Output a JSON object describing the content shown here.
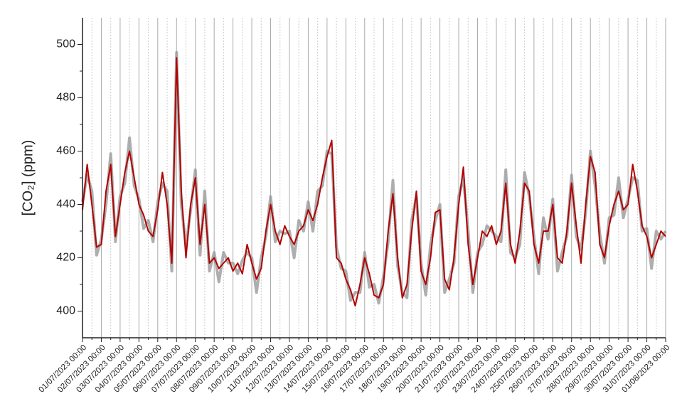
{
  "chart_data": {
    "type": "line",
    "ylabel": "[CO₂] (ppm)",
    "ylim": [
      390,
      510
    ],
    "yticks": [
      400,
      420,
      440,
      460,
      480,
      500
    ],
    "xlim": [
      0,
      31
    ],
    "xticks": [
      {
        "value": 0,
        "label": "01/07/2023 00:00"
      },
      {
        "value": 1,
        "label": "02/07/2023 00:00"
      },
      {
        "value": 2,
        "label": "03/07/2023 00:00"
      },
      {
        "value": 3,
        "label": "04/07/2023 00:00"
      },
      {
        "value": 4,
        "label": "05/07/2023 00:00"
      },
      {
        "value": 5,
        "label": "06/07/2023 00:00"
      },
      {
        "value": 6,
        "label": "07/07/2023 00:00"
      },
      {
        "value": 7,
        "label": "08/07/2023 00:00"
      },
      {
        "value": 8,
        "label": "09/07/2023 00:00"
      },
      {
        "value": 9,
        "label": "10/07/2023 00:00"
      },
      {
        "value": 10,
        "label": "11/07/2023 00:00"
      },
      {
        "value": 11,
        "label": "12/07/2023 00:00"
      },
      {
        "value": 12,
        "label": "13/07/2023 00:00"
      },
      {
        "value": 13,
        "label": "14/07/2023 00:00"
      },
      {
        "value": 14,
        "label": "15/07/2023 00:00"
      },
      {
        "value": 15,
        "label": "16/07/2023 00:00"
      },
      {
        "value": 16,
        "label": "17/07/2023 00:00"
      },
      {
        "value": 17,
        "label": "18/07/2023 00:00"
      },
      {
        "value": 18,
        "label": "19/07/2023 00:00"
      },
      {
        "value": 19,
        "label": "20/07/2023 00:00"
      },
      {
        "value": 20,
        "label": "21/07/2023 00:00"
      },
      {
        "value": 21,
        "label": "22/07/2023 00:00"
      },
      {
        "value": 22,
        "label": "23/07/2023 00:00"
      },
      {
        "value": 23,
        "label": "24/07/2023 00:00"
      },
      {
        "value": 24,
        "label": "25/07/2023 00:00"
      },
      {
        "value": 25,
        "label": "26/07/2023 00:00"
      },
      {
        "value": 26,
        "label": "27/07/2023 00:00"
      },
      {
        "value": 27,
        "label": "28/07/2023 00:00"
      },
      {
        "value": 28,
        "label": "29/07/2023 00:00"
      },
      {
        "value": 29,
        "label": "30/07/2023 00:00"
      },
      {
        "value": 30,
        "label": "31/07/2023 00:00"
      },
      {
        "value": 31,
        "label": "01/08/2023 00:00"
      }
    ],
    "grid": true,
    "x": [
      0,
      0.25,
      0.5,
      0.75,
      1,
      1.25,
      1.5,
      1.75,
      2,
      2.25,
      2.5,
      2.75,
      3,
      3.25,
      3.5,
      3.75,
      4,
      4.25,
      4.5,
      4.75,
      5,
      5.25,
      5.5,
      5.75,
      6,
      6.25,
      6.5,
      6.75,
      7,
      7.25,
      7.5,
      7.75,
      8,
      8.25,
      8.5,
      8.75,
      9,
      9.25,
      9.5,
      9.75,
      10,
      10.25,
      10.5,
      10.75,
      11,
      11.25,
      11.5,
      11.75,
      12,
      12.25,
      12.5,
      12.75,
      13,
      13.25,
      13.5,
      13.75,
      14,
      14.25,
      14.5,
      14.75,
      15,
      15.25,
      15.5,
      15.75,
      16,
      16.25,
      16.5,
      16.75,
      17,
      17.25,
      17.5,
      17.75,
      18,
      18.25,
      18.5,
      18.75,
      19,
      19.25,
      19.5,
      19.75,
      20,
      20.25,
      20.5,
      20.75,
      21,
      21.25,
      21.5,
      21.75,
      22,
      22.25,
      22.5,
      22.75,
      23,
      23.25,
      23.5,
      23.75,
      24,
      24.25,
      24.5,
      24.75,
      25,
      25.25,
      25.5,
      25.75,
      26,
      26.25,
      26.5,
      26.75,
      27,
      27.25,
      27.5,
      27.75,
      28,
      28.25,
      28.5,
      28.75,
      29,
      29.25,
      29.5,
      29.75,
      30,
      30.25,
      30.5,
      30.75,
      31
    ],
    "series": [
      {
        "color": "#9a9a9a",
        "values": [
          441,
          451,
          445,
          421,
          427,
          440,
          459,
          426,
          443,
          448,
          465,
          447,
          442,
          431,
          434,
          426,
          441,
          448,
          445,
          415,
          497,
          440,
          424,
          438,
          453,
          421,
          445,
          415,
          422,
          411,
          422,
          418,
          418,
          414,
          419,
          422,
          420,
          407,
          420,
          428,
          443,
          426,
          430,
          429,
          430,
          420,
          434,
          430,
          441,
          430,
          445,
          447,
          460,
          459,
          424,
          416,
          415,
          404,
          407,
          407,
          422,
          409,
          410,
          403,
          413,
          426,
          449,
          417,
          407,
          405,
          434,
          443,
          418,
          406,
          425,
          434,
          440,
          407,
          412,
          418,
          443,
          450,
          430,
          407,
          422,
          425,
          432,
          430,
          428,
          426,
          453,
          422,
          420,
          425,
          452,
          443,
          428,
          414,
          435,
          427,
          442,
          415,
          422,
          428,
          451,
          428,
          423,
          437,
          460,
          447,
          429,
          418,
          435,
          436,
          450,
          435,
          442,
          450,
          449,
          430,
          431,
          416,
          430,
          427,
          430
        ]
      },
      {
        "color": "#b30000",
        "values": [
          438,
          455,
          440,
          424,
          425,
          445,
          455,
          428,
          440,
          452,
          460,
          450,
          440,
          436,
          430,
          428,
          438,
          452,
          440,
          418,
          495,
          445,
          420,
          440,
          450,
          425,
          440,
          418,
          420,
          416,
          418,
          420,
          415,
          418,
          414,
          425,
          418,
          412,
          416,
          430,
          440,
          430,
          425,
          432,
          428,
          425,
          430,
          432,
          438,
          434,
          440,
          450,
          458,
          464,
          420,
          418,
          412,
          408,
          402,
          410,
          420,
          414,
          406,
          405,
          410,
          430,
          444,
          420,
          405,
          410,
          430,
          445,
          415,
          410,
          420,
          437,
          438,
          412,
          408,
          420,
          440,
          454,
          425,
          410,
          420,
          430,
          428,
          432,
          425,
          430,
          448,
          425,
          418,
          430,
          448,
          445,
          425,
          418,
          430,
          430,
          440,
          420,
          418,
          430,
          448,
          432,
          418,
          440,
          458,
          452,
          425,
          420,
          432,
          440,
          445,
          438,
          440,
          455,
          445,
          432,
          428,
          420,
          425,
          430,
          428
        ]
      }
    ]
  }
}
